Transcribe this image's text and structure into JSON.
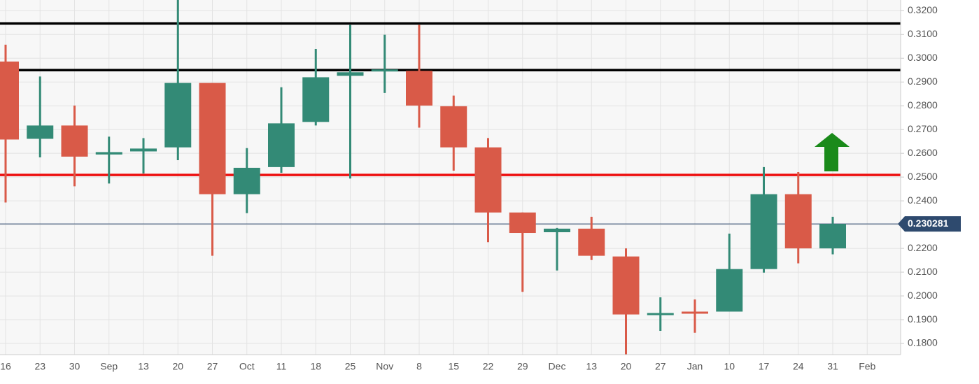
{
  "chart_data": {
    "type": "candlestick",
    "categories": [
      "16",
      "23",
      "30",
      "Sep",
      "13",
      "20",
      "27",
      "Oct",
      "11",
      "18",
      "25",
      "Nov",
      "8",
      "15",
      "22",
      "29",
      "Dec",
      "13",
      "20",
      "27",
      "Jan",
      "10",
      "17",
      "24",
      "31",
      "Feb"
    ],
    "open": [
      0.2986,
      0.2661,
      0.2717,
      0.2595,
      0.2608,
      0.2625,
      0.2896,
      0.2428,
      0.2542,
      0.2732,
      0.2926,
      0.2947,
      0.2947,
      0.2798,
      0.2625,
      0.2351,
      0.2268,
      0.2283,
      0.2166,
      0.1922,
      0.1934,
      0.1934,
      0.2113,
      0.2428,
      0.22,
      null
    ],
    "high": [
      0.3057,
      0.2923,
      0.2801,
      0.267,
      0.2664,
      0.3245,
      0.2896,
      0.2622,
      0.2878,
      0.3039,
      0.314,
      0.3099,
      0.314,
      0.2843,
      0.2664,
      0.2351,
      0.2286,
      0.2333,
      0.22,
      0.1994,
      0.1985,
      0.2262,
      0.2542,
      0.2521,
      0.2333,
      null
    ],
    "low": [
      0.2393,
      0.2583,
      0.2461,
      0.2473,
      0.2515,
      0.2571,
      0.2169,
      0.2348,
      0.2518,
      0.2717,
      0.2494,
      0.2854,
      0.2708,
      0.2527,
      0.2226,
      0.2017,
      0.2107,
      0.2151,
      0.1752,
      0.1853,
      0.1845,
      0.1934,
      0.2098,
      0.2137,
      0.2175,
      null
    ],
    "close": [
      0.2658,
      0.2717,
      0.2586,
      0.2605,
      0.262,
      0.2896,
      0.2428,
      0.2539,
      0.2726,
      0.292,
      0.2941,
      0.2953,
      0.2801,
      0.2625,
      0.2351,
      0.2265,
      0.2283,
      0.2169,
      0.1922,
      0.1928,
      0.1931,
      0.2113,
      0.2428,
      0.22,
      0.2303,
      null
    ],
    "up_color": "#338a76",
    "down_color": "#d95a48",
    "ylim": [
      0.1753,
      0.3245
    ],
    "yticks": [
      {
        "value": 0.18,
        "label": "0.1800"
      },
      {
        "value": 0.19,
        "label": "0.1900"
      },
      {
        "value": 0.2,
        "label": "0.2000"
      },
      {
        "value": 0.21,
        "label": "0.2100"
      },
      {
        "value": 0.22,
        "label": "0.2200"
      },
      {
        "value": 0.23,
        "label": "0.2300"
      },
      {
        "value": 0.24,
        "label": "0.2400"
      },
      {
        "value": 0.25,
        "label": "0.2500"
      },
      {
        "value": 0.26,
        "label": "0.2600"
      },
      {
        "value": 0.27,
        "label": "0.2700"
      },
      {
        "value": 0.28,
        "label": "0.2800"
      },
      {
        "value": 0.29,
        "label": "0.2900"
      },
      {
        "value": 0.3,
        "label": "0.3000"
      },
      {
        "value": 0.31,
        "label": "0.3100"
      },
      {
        "value": 0.32,
        "label": "0.3200"
      }
    ],
    "grid": true,
    "levels": [
      {
        "value": 0.3146,
        "color": "#000000"
      },
      {
        "value": 0.295,
        "color": "#000000"
      },
      {
        "value": 0.2509,
        "color": "#ee1111"
      }
    ],
    "current_price": 0.230281,
    "current_color": "#2e4a6e"
  }
}
